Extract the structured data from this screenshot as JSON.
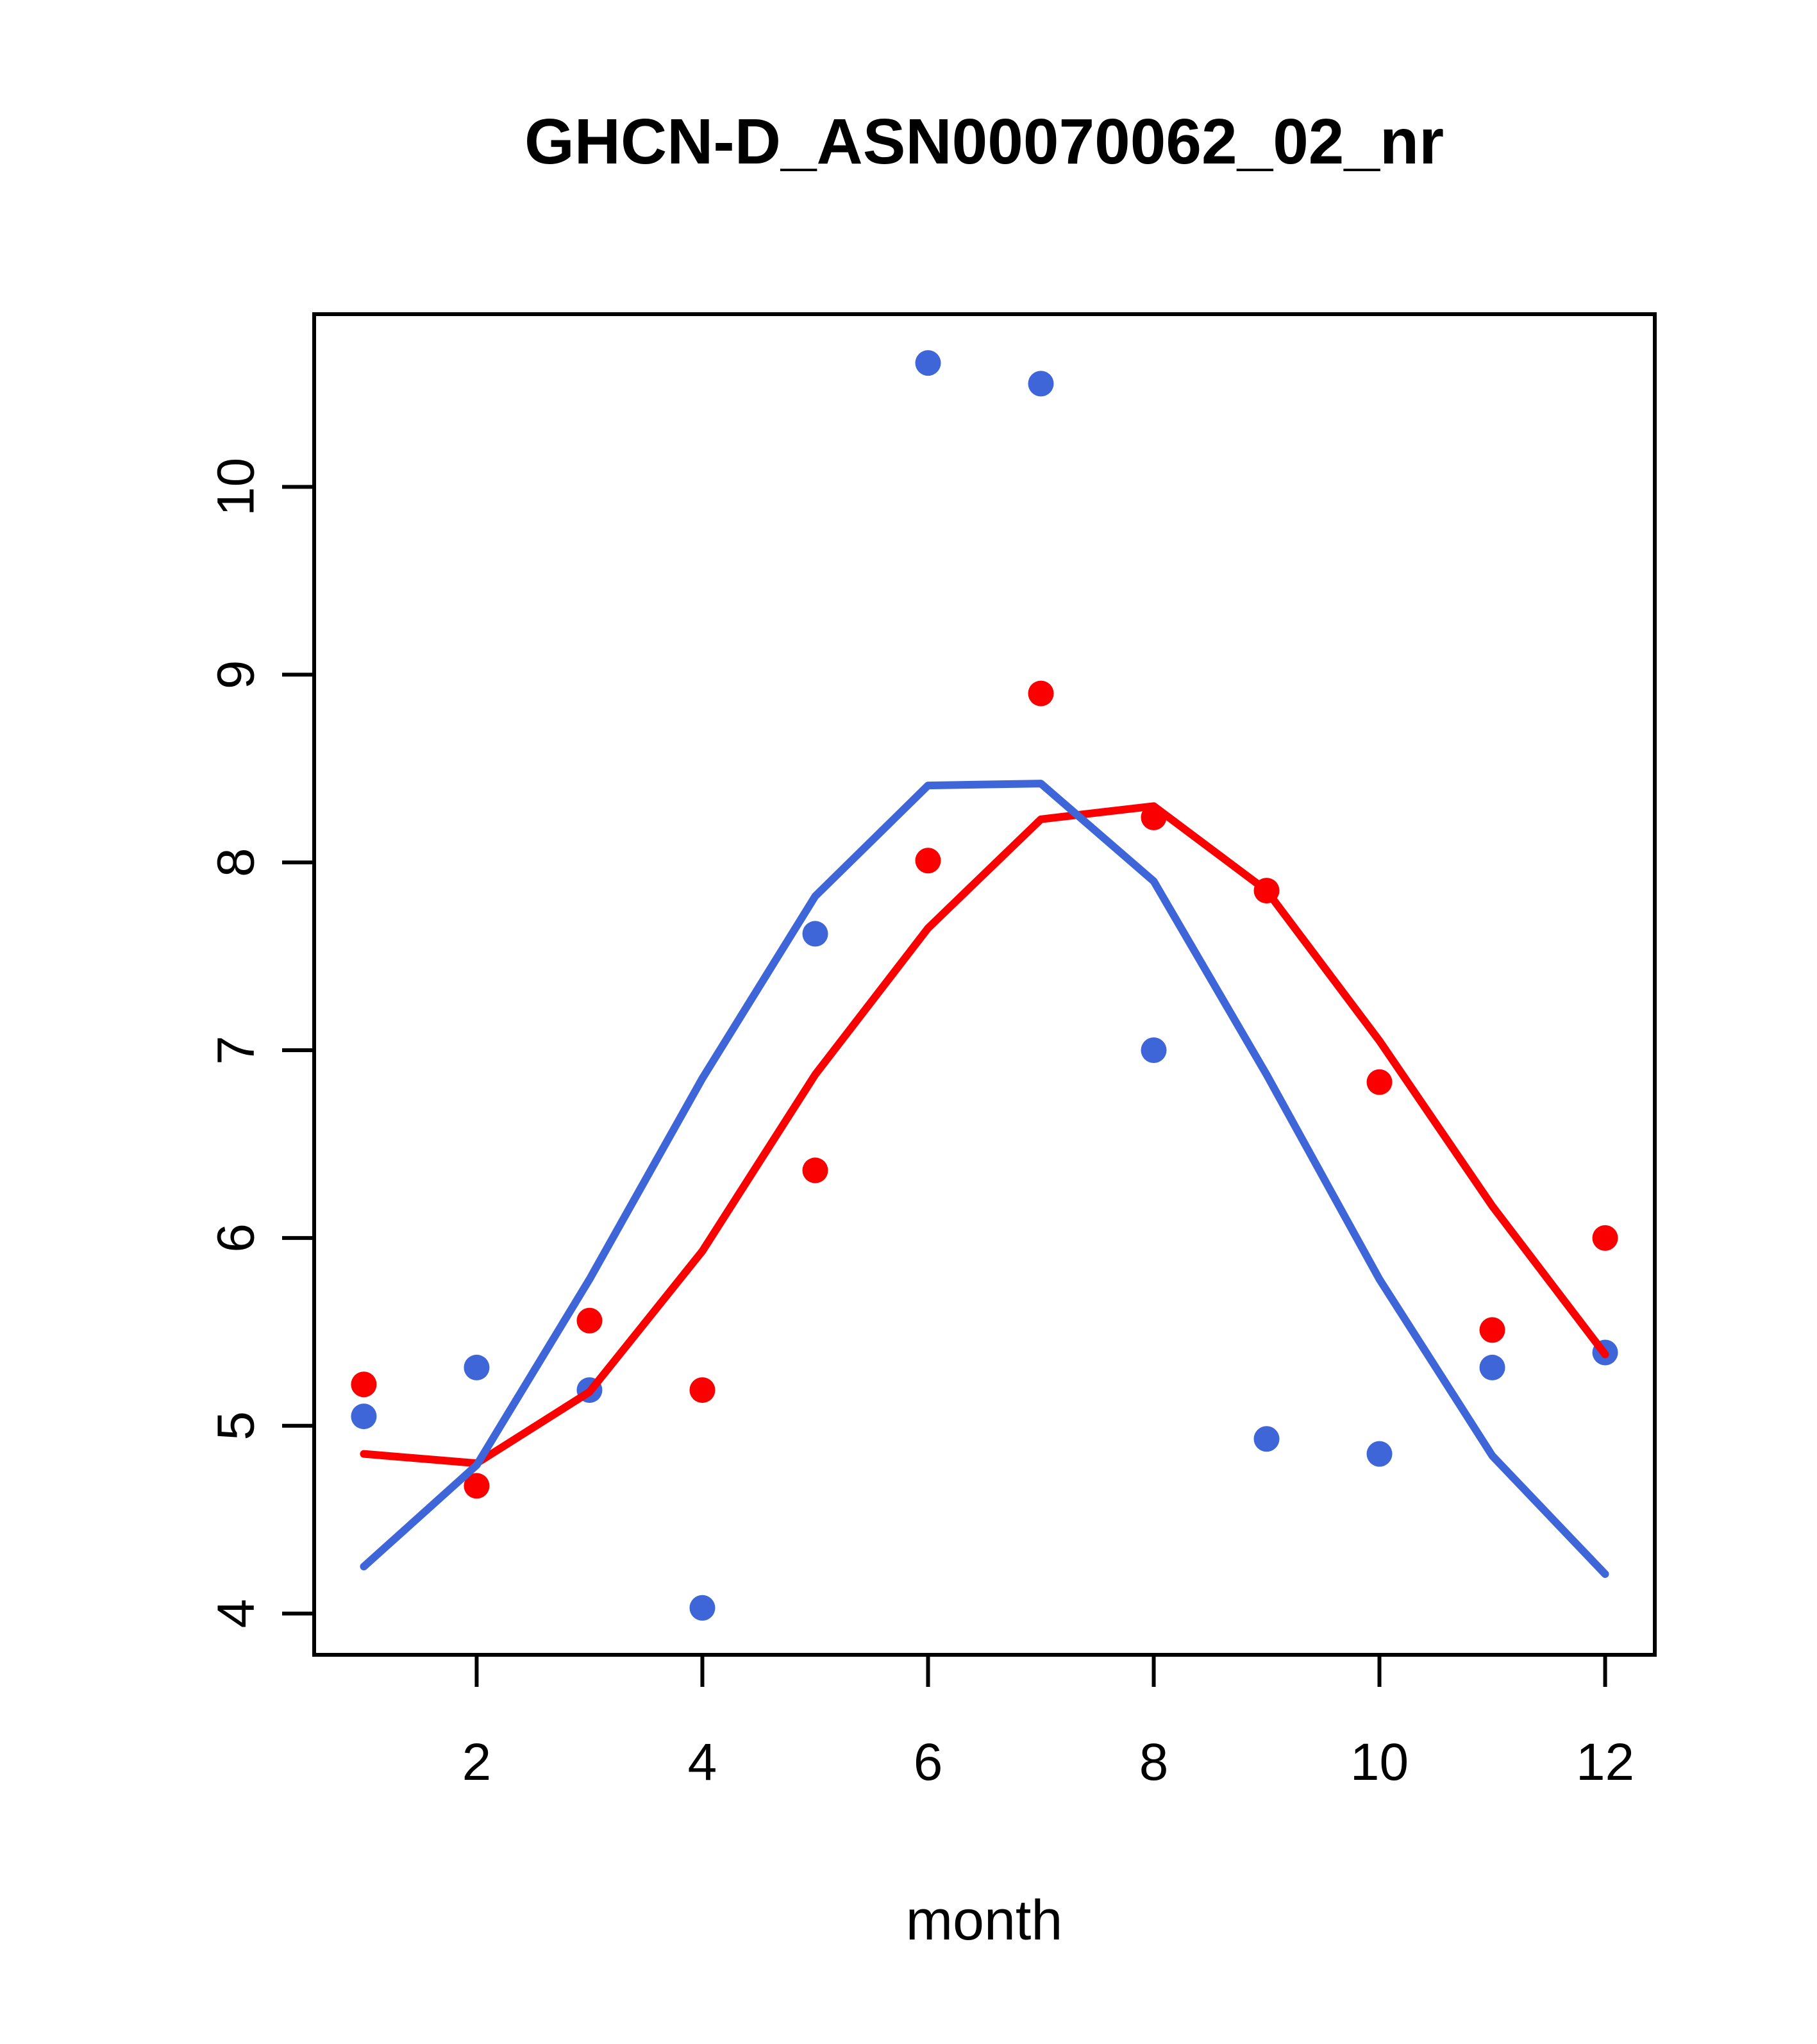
{
  "title": "GHCN-D_ASN00070062_02_nr",
  "colors": {
    "blue_series": "#3E66D8",
    "red_series": "#FB0000",
    "axis": "#000000",
    "background": "#FFFFFF"
  },
  "chart_data": {
    "type": "scatter",
    "title": "GHCN-D_ASN00070062_02_nr",
    "xlabel": "month",
    "ylabel": "",
    "grid": false,
    "legend": null,
    "x": [
      1,
      2,
      3,
      4,
      5,
      6,
      7,
      8,
      9,
      10,
      11,
      12
    ],
    "xticks": [
      2,
      4,
      6,
      8,
      10,
      12
    ],
    "yticks": [
      4,
      5,
      6,
      7,
      8,
      9,
      10
    ],
    "xlim": [
      0.56,
      12.44
    ],
    "ylim": [
      3.78,
      10.92
    ],
    "series": [
      {
        "id": "blue-points",
        "style": "points",
        "color_key": "blue_series",
        "values": [
          5.05,
          5.31,
          5.19,
          4.03,
          7.62,
          10.66,
          10.55,
          7.0,
          4.93,
          4.85,
          5.31,
          5.39
        ]
      },
      {
        "id": "red-points",
        "style": "points",
        "color_key": "red_series",
        "values": [
          5.22,
          4.68,
          5.56,
          5.19,
          6.36,
          8.01,
          8.9,
          8.24,
          7.85,
          6.83,
          5.51,
          6.0
        ]
      },
      {
        "id": "red-smooth-line",
        "style": "line",
        "color_key": "red_series",
        "values": [
          4.85,
          4.8,
          5.18,
          5.93,
          6.87,
          7.65,
          8.23,
          8.3,
          7.85,
          7.05,
          6.17,
          5.38
        ]
      },
      {
        "id": "blue-smooth-line",
        "style": "line",
        "color_key": "blue_series",
        "values": [
          4.25,
          4.79,
          5.78,
          6.85,
          7.82,
          8.41,
          8.42,
          7.9,
          6.87,
          5.78,
          4.84,
          4.21
        ]
      }
    ]
  }
}
